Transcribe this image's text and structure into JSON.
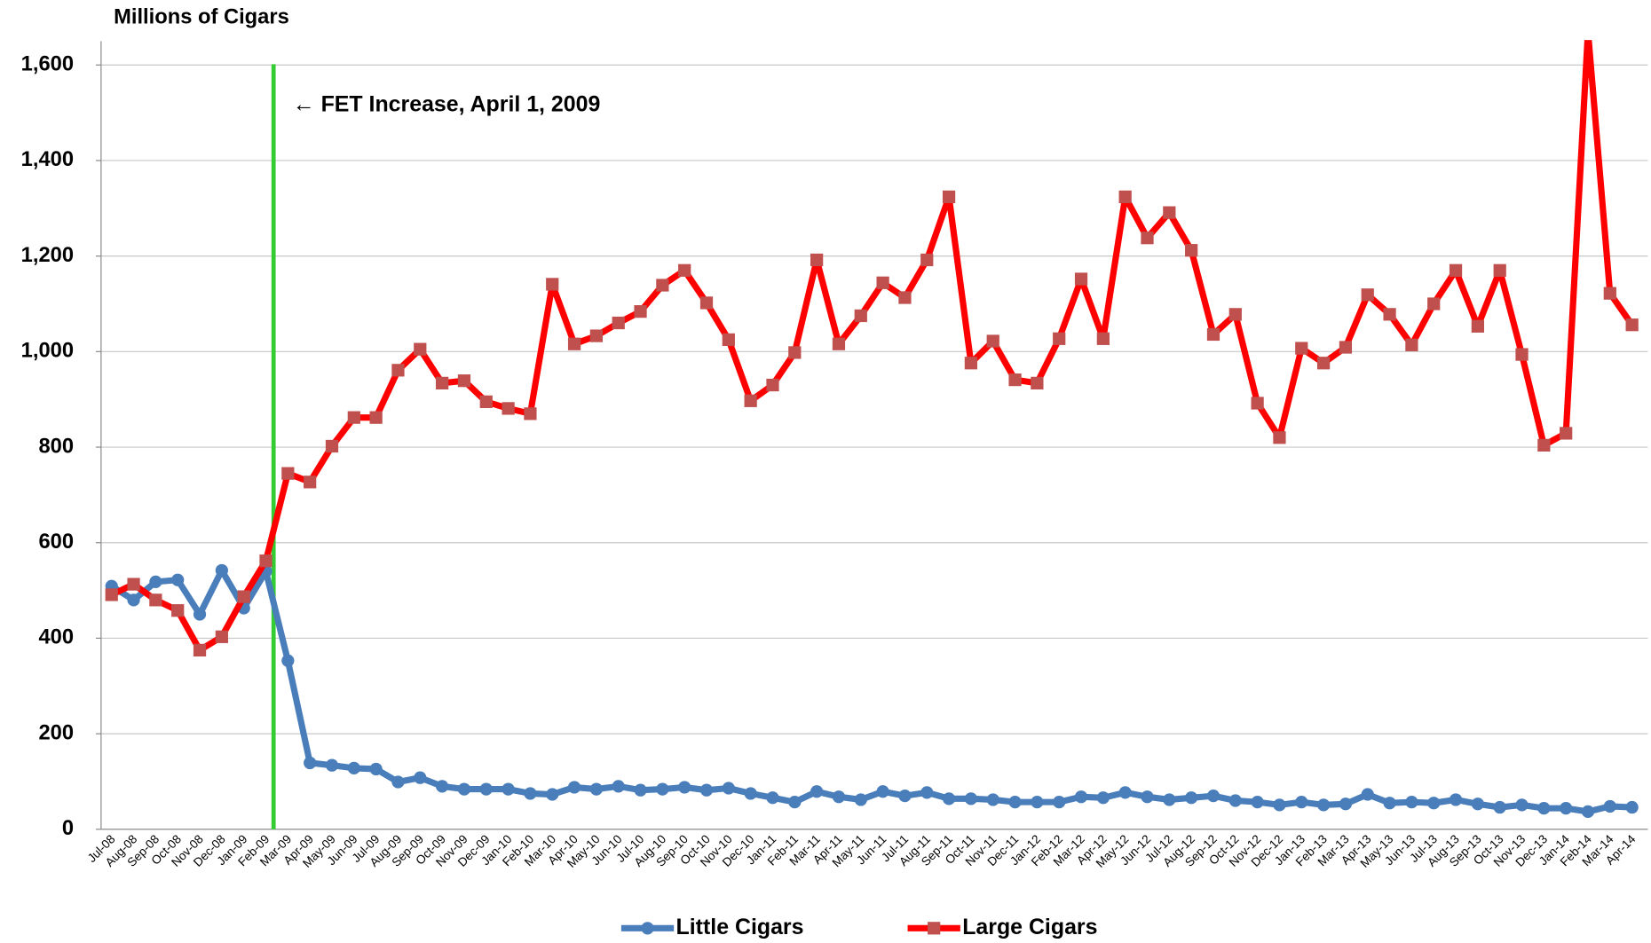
{
  "chart_data": {
    "type": "line",
    "y_label": "Millions of Cigars",
    "annotation": "← FET Increase, April 1, 2009",
    "categories": [
      "Jul-08",
      "Aug-08",
      "Sep-08",
      "Oct-08",
      "Nov-08",
      "Dec-08",
      "Jan-09",
      "Feb-09",
      "Mar-09",
      "Apr-09",
      "May-09",
      "Jun-09",
      "Jul-09",
      "Aug-09",
      "Sep-09",
      "Oct-09",
      "Nov-09",
      "Dec-09",
      "Jan-10",
      "Feb-10",
      "Mar-10",
      "Apr-10",
      "May-10",
      "Jun-10",
      "Jul-10",
      "Aug-10",
      "Sep-10",
      "Oct-10",
      "Nov-10",
      "Dec-10",
      "Jan-11",
      "Feb-11",
      "Mar-11",
      "Apr-11",
      "May-11",
      "Jun-11",
      "Jul-11",
      "Aug-11",
      "Sep-11",
      "Oct-11",
      "Nov-11",
      "Dec-11",
      "Jan-12",
      "Feb-12",
      "Mar-12",
      "Apr-12",
      "May-12",
      "Jun-12",
      "Jul-12",
      "Aug-12",
      "Sep-12",
      "Oct-12",
      "Nov-12",
      "Dec-12",
      "Jan-13",
      "Feb-13",
      "Mar-13",
      "Apr-13",
      "May-13",
      "Jun-13",
      "Jul-13",
      "Aug-13",
      "Sep-13",
      "Oct-13",
      "Nov-13",
      "Dec-13",
      "Jan-14",
      "Feb-14",
      "Mar-14",
      "Apr-14"
    ],
    "series": [
      {
        "name": "Little Cigars",
        "color": "#4a7ebb",
        "marker": "circle",
        "marker_color": "#4a7ebb",
        "values": [
          509,
          480,
          518,
          522,
          450,
          542,
          463,
          540,
          353,
          139,
          134,
          128,
          126,
          99,
          108,
          90,
          84,
          84,
          84,
          75,
          73,
          88,
          84,
          90,
          82,
          84,
          88,
          82,
          86,
          75,
          66,
          57,
          79,
          68,
          62,
          79,
          70,
          77,
          64,
          64,
          62,
          57,
          57,
          57,
          68,
          66,
          77,
          68,
          62,
          66,
          70,
          60,
          57,
          51,
          57,
          51,
          53,
          73,
          55,
          57,
          55,
          62,
          53,
          46,
          51,
          44,
          44,
          37,
          48,
          46
        ]
      },
      {
        "name": "Large Cigars",
        "color": "#ff0000",
        "marker": "square",
        "marker_color": "#c0504d",
        "values": [
          491,
          513,
          480,
          458,
          375,
          403,
          487,
          562,
          745,
          727,
          802,
          862,
          862,
          961,
          1005,
          934,
          939,
          895,
          881,
          870,
          1141,
          1016,
          1033,
          1060,
          1084,
          1139,
          1170,
          1102,
          1025,
          897,
          930,
          998,
          1192,
          1016,
          1075,
          1144,
          1113,
          1192,
          1324,
          976,
          1022,
          941,
          934,
          1027,
          1152,
          1027,
          1324,
          1238,
          1291,
          1212,
          1036,
          1078,
          892,
          820,
          1007,
          976,
          1009,
          1119,
          1078,
          1014,
          1100,
          1170,
          1053,
          1170,
          994,
          804,
          829,
          1670,
          1122,
          1056
        ]
      }
    ],
    "ylim": [
      0,
      1650
    ],
    "yticks": [
      0,
      200,
      400,
      600,
      800,
      {
        "value": 1000,
        "label": "1,000"
      },
      {
        "value": 1200,
        "label": "1,200"
      },
      {
        "value": 1400,
        "label": "1,400"
      },
      {
        "value": 1600,
        "label": "1,600"
      }
    ],
    "grid": true,
    "legend": "bottom"
  }
}
